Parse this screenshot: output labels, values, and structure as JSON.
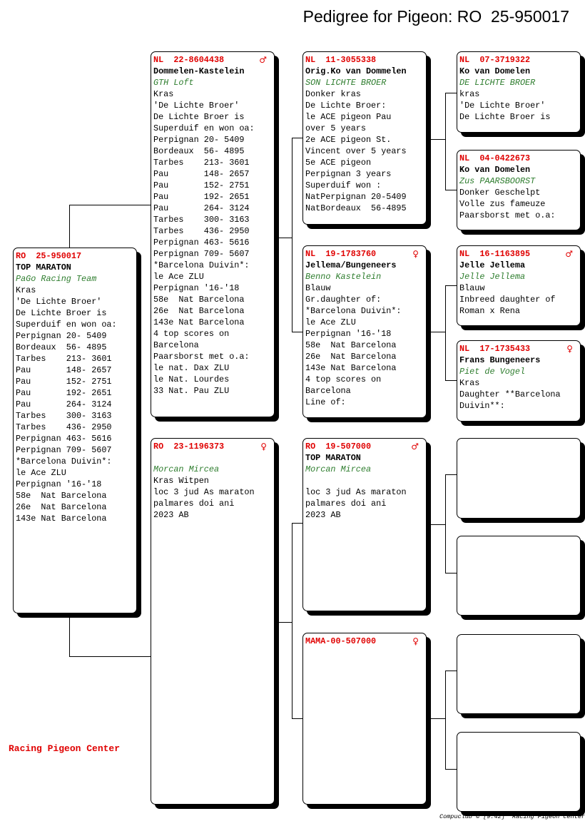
{
  "title": "Pedigree for Pigeon: RO  25-950017",
  "brand": "Racing Pigeon Center",
  "footer": "Compuclub © [9.42]  Racing Pigeon Center",
  "colors": {
    "ring": "#e00000",
    "loft": "#2e7d2e",
    "shadow": "#000000"
  },
  "pigeons": [
    {
      "ring": "RO  25-950017",
      "sex": "",
      "lines": [
        {
          "t": "TOP MARATON",
          "s": "name"
        },
        {
          "t": "PaGo Racing Team",
          "s": "loft"
        },
        {
          "t": "Kras"
        },
        {
          "t": "'De Lichte Broer'"
        },
        {
          "t": "De Lichte Broer is"
        },
        {
          "t": "Superduif en won oa:"
        },
        {
          "t": "Perpignan 20- 5409"
        },
        {
          "t": "Bordeaux  56- 4895"
        },
        {
          "t": "Tarbes    213- 3601"
        },
        {
          "t": "Pau       148- 2657"
        },
        {
          "t": "Pau       152- 2751"
        },
        {
          "t": "Pau       192- 2651"
        },
        {
          "t": "Pau       264- 3124"
        },
        {
          "t": "Tarbes    300- 3163"
        },
        {
          "t": "Tarbes    436- 2950"
        },
        {
          "t": "Perpignan 463- 5616"
        },
        {
          "t": "Perpignan 709- 5607"
        },
        {
          "t": "*Barcelona Duivin*:"
        },
        {
          "t": "le Ace ZLU"
        },
        {
          "t": "Perpignan '16-'18"
        },
        {
          "t": "58e  Nat Barcelona"
        },
        {
          "t": "26e  Nat Barcelona"
        },
        {
          "t": "143e Nat Barcelona"
        }
      ]
    },
    {
      "ring": "NL  22-8604438",
      "sex": "♂",
      "lines": [
        {
          "t": "Dommelen-Kastelein",
          "s": "name"
        },
        {
          "t": "GTH Loft",
          "s": "loft"
        },
        {
          "t": "Kras"
        },
        {
          "t": "'De Lichte Broer'"
        },
        {
          "t": "De Lichte Broer is"
        },
        {
          "t": "Superduif en won oa:"
        },
        {
          "t": "Perpignan 20- 5409"
        },
        {
          "t": "Bordeaux  56- 4895"
        },
        {
          "t": "Tarbes    213- 3601"
        },
        {
          "t": "Pau       148- 2657"
        },
        {
          "t": "Pau       152- 2751"
        },
        {
          "t": "Pau       192- 2651"
        },
        {
          "t": "Pau       264- 3124"
        },
        {
          "t": "Tarbes    300- 3163"
        },
        {
          "t": "Tarbes    436- 2950"
        },
        {
          "t": "Perpignan 463- 5616"
        },
        {
          "t": "Perpignan 709- 5607"
        },
        {
          "t": "*Barcelona Duivin*:"
        },
        {
          "t": "le Ace ZLU"
        },
        {
          "t": "Perpignan '16-'18"
        },
        {
          "t": "58e  Nat Barcelona"
        },
        {
          "t": "26e  Nat Barcelona"
        },
        {
          "t": "143e Nat Barcelona"
        },
        {
          "t": "4 top scores on"
        },
        {
          "t": "Barcelona"
        },
        {
          "t": "Paarsborst met o.a:"
        },
        {
          "t": "le nat. Dax ZLU"
        },
        {
          "t": "le Nat. Lourdes"
        },
        {
          "t": "33 Nat. Pau ZLU"
        }
      ]
    },
    {
      "ring": "RO  23-1196373",
      "sex": "♀",
      "lines": [
        {
          "t": "",
          "s": "name"
        },
        {
          "t": "Morcan Mircea",
          "s": "loft"
        },
        {
          "t": "Kras Witpen"
        },
        {
          "t": "loc 3 jud As maraton"
        },
        {
          "t": "palmares doi ani"
        },
        {
          "t": "2023 AB"
        }
      ]
    },
    {
      "ring": "NL  11-3055338",
      "sex": "",
      "lines": [
        {
          "t": "Orig.Ko van Dommelen",
          "s": "name"
        },
        {
          "t": "SON LICHTE BROER",
          "s": "loft"
        },
        {
          "t": "Donker kras"
        },
        {
          "t": "De Lichte Broer:"
        },
        {
          "t": "le ACE pigeon Pau"
        },
        {
          "t": "over 5 years"
        },
        {
          "t": "2e ACE pigeon St."
        },
        {
          "t": "Vincent over 5 years"
        },
        {
          "t": "5e ACE pigeon"
        },
        {
          "t": "Perpignan 3 years"
        },
        {
          "t": "Superduif won :"
        },
        {
          "t": "NatPerpignan 20-5409"
        },
        {
          "t": "NatBordeaux  56-4895"
        }
      ]
    },
    {
      "ring": "NL  19-1783760",
      "sex": "♀",
      "lines": [
        {
          "t": "Jellema/Bungeneers",
          "s": "name"
        },
        {
          "t": "Benno Kastelein",
          "s": "loft"
        },
        {
          "t": "Blauw"
        },
        {
          "t": "Gr.daughter of:"
        },
        {
          "t": "*Barcelona Duivin*:"
        },
        {
          "t": "le Ace ZLU"
        },
        {
          "t": "Perpignan '16-'18"
        },
        {
          "t": "58e  Nat Barcelona"
        },
        {
          "t": "26e  Nat Barcelona"
        },
        {
          "t": "143e Nat Barcelona"
        },
        {
          "t": "4 top scores on"
        },
        {
          "t": "Barcelona"
        },
        {
          "t": "Line of:"
        }
      ]
    },
    {
      "ring": "RO  19-507000",
      "sex": "♂",
      "lines": [
        {
          "t": "TOP MARATON",
          "s": "name"
        },
        {
          "t": "Morcan Mircea",
          "s": "loft"
        },
        {
          "t": ""
        },
        {
          "t": "loc 3 jud As maraton"
        },
        {
          "t": "palmares doi ani"
        },
        {
          "t": "2023 AB"
        }
      ]
    },
    {
      "ring": "MAMA-00-507000",
      "sex": "♀",
      "lines": []
    },
    {
      "ring": "NL  07-3719322",
      "sex": "",
      "lines": [
        {
          "t": "Ko van Domelen",
          "s": "name"
        },
        {
          "t": "DE LICHTE BROER",
          "s": "loft"
        },
        {
          "t": "kras"
        },
        {
          "t": "'De Lichte Broer'"
        },
        {
          "t": "De Lichte Broer is"
        }
      ]
    },
    {
      "ring": "NL  04-0422673",
      "sex": "",
      "lines": [
        {
          "t": "Ko van Domelen",
          "s": "name"
        },
        {
          "t": "Zus PAARSBOORST",
          "s": "loft"
        },
        {
          "t": "Donker Geschelpt"
        },
        {
          "t": "Volle zus fameuze"
        },
        {
          "t": "Paarsborst met o.a:"
        }
      ]
    },
    {
      "ring": "NL  16-1163895",
      "sex": "♂",
      "lines": [
        {
          "t": "Jelle Jellema",
          "s": "name"
        },
        {
          "t": "Jelle Jellema",
          "s": "loft"
        },
        {
          "t": "Blauw"
        },
        {
          "t": "Inbreed daughter of"
        },
        {
          "t": "Roman x Rena"
        }
      ]
    },
    {
      "ring": "NL  17-1735433",
      "sex": "♀",
      "lines": [
        {
          "t": "Frans Bungeneers",
          "s": "name"
        },
        {
          "t": "Piet de Vogel",
          "s": "loft"
        },
        {
          "t": "Kras"
        },
        {
          "t": "Daughter **Barcelona"
        },
        {
          "t": "Duivin**:"
        }
      ]
    },
    {
      "ring": "",
      "sex": "",
      "lines": []
    },
    {
      "ring": "",
      "sex": "",
      "lines": []
    },
    {
      "ring": "",
      "sex": "",
      "lines": []
    },
    {
      "ring": "",
      "sex": "",
      "lines": []
    }
  ]
}
